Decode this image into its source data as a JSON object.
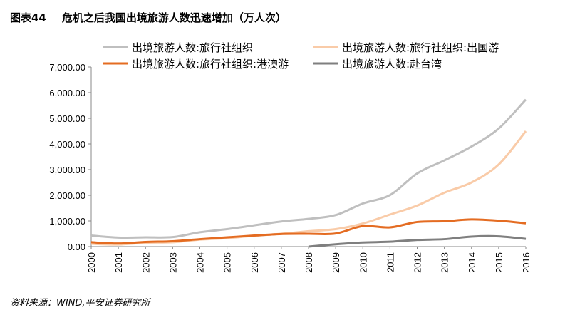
{
  "header": {
    "figure_no": "图表44",
    "title": "危机之后我国出境旅游人数迅速增加（万人次）"
  },
  "footer": {
    "source": "资料来源：WIND,平安证券研究所"
  },
  "chart_data": {
    "type": "line",
    "title": "危机之后我国出境旅游人数迅速增加（万人次）",
    "x": [
      "2000",
      "2001",
      "2002",
      "2003",
      "2004",
      "2005",
      "2006",
      "2007",
      "2008",
      "2009",
      "2010",
      "2011",
      "2012",
      "2013",
      "2014",
      "2015",
      "2016"
    ],
    "ylim": [
      0,
      7000
    ],
    "yticks": [
      "0.00",
      "1,000.00",
      "2,000.00",
      "3,000.00",
      "4,000.00",
      "5,000.00",
      "6,000.00",
      "7,000.00"
    ],
    "grid": false,
    "legend": "top",
    "series": [
      {
        "name": "出境旅游人数:旅行社组织",
        "color": "#bfbfbf",
        "values": [
          430,
          350,
          360,
          370,
          560,
          680,
          830,
          980,
          1080,
          1230,
          1680,
          2010,
          2850,
          3360,
          3900,
          4600,
          5730
        ]
      },
      {
        "name": "出境旅游人数:旅行社组织:出国游",
        "color": "#f9cba8",
        "values": [
          110,
          80,
          150,
          170,
          270,
          330,
          420,
          500,
          600,
          680,
          900,
          1250,
          1600,
          2100,
          2500,
          3200,
          4500
        ]
      },
      {
        "name": "出境旅游人数:旅行社组织:港澳游",
        "color": "#e46c22",
        "values": [
          170,
          120,
          180,
          210,
          290,
          360,
          430,
          490,
          500,
          510,
          800,
          750,
          960,
          990,
          1060,
          1010,
          910
        ]
      },
      {
        "name": "出境旅游人数:赴台湾",
        "color": "#7f7f7f",
        "values": [
          null,
          null,
          null,
          null,
          null,
          null,
          null,
          null,
          0,
          90,
          160,
          190,
          260,
          290,
          390,
          400,
          300
        ]
      }
    ]
  }
}
